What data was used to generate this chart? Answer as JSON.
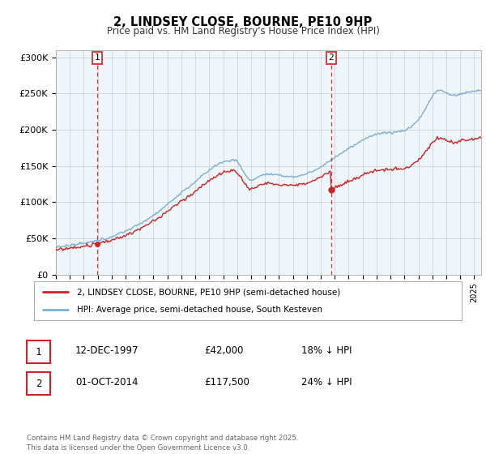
{
  "title": "2, LINDSEY CLOSE, BOURNE, PE10 9HP",
  "subtitle": "Price paid vs. HM Land Registry's House Price Index (HPI)",
  "ylabel_ticks": [
    "£0",
    "£50K",
    "£100K",
    "£150K",
    "£200K",
    "£250K",
    "£300K"
  ],
  "ytick_values": [
    0,
    50000,
    100000,
    150000,
    200000,
    250000,
    300000
  ],
  "ylim": [
    0,
    310000
  ],
  "xlim_start": 1995.0,
  "xlim_end": 2025.5,
  "purchase1_date": 1997.95,
  "purchase1_price": 42000,
  "purchase2_date": 2014.75,
  "purchase2_price": 117500,
  "hpi_color": "#7bafd4",
  "price_color": "#cc2222",
  "vline_color": "#cc2222",
  "shade_color": "#daeaf5",
  "grid_color": "#cccccc",
  "background_color": "#eef5fb",
  "legend_label_price": "2, LINDSEY CLOSE, BOURNE, PE10 9HP (semi-detached house)",
  "legend_label_hpi": "HPI: Average price, semi-detached house, South Kesteven",
  "annotation1": "1",
  "annotation2": "2",
  "footer": "Contains HM Land Registry data © Crown copyright and database right 2025.\nThis data is licensed under the Open Government Licence v3.0.",
  "table_row1": [
    "1",
    "12-DEC-1997",
    "£42,000",
    "18% ↓ HPI"
  ],
  "table_row2": [
    "2",
    "01-OCT-2014",
    "£117,500",
    "24% ↓ HPI"
  ]
}
